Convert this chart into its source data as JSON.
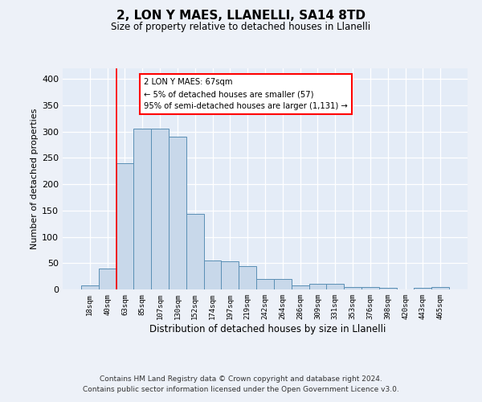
{
  "title_line1": "2, LON Y MAES, LLANELLI, SA14 8TD",
  "title_line2": "Size of property relative to detached houses in Llanelli",
  "xlabel": "Distribution of detached houses by size in Llanelli",
  "ylabel": "Number of detached properties",
  "categories": [
    "18sqm",
    "40sqm",
    "63sqm",
    "85sqm",
    "107sqm",
    "130sqm",
    "152sqm",
    "174sqm",
    "197sqm",
    "219sqm",
    "242sqm",
    "264sqm",
    "286sqm",
    "309sqm",
    "331sqm",
    "353sqm",
    "376sqm",
    "398sqm",
    "420sqm",
    "443sqm",
    "465sqm"
  ],
  "values": [
    7,
    39,
    240,
    305,
    305,
    290,
    143,
    55,
    54,
    45,
    20,
    20,
    7,
    10,
    10,
    4,
    4,
    3,
    0,
    3,
    4
  ],
  "bar_color": "#c8d8ea",
  "bar_edge_color": "#5a8fb5",
  "red_line_index": 2,
  "annotation_text": "2 LON Y MAES: 67sqm\n← 5% of detached houses are smaller (57)\n95% of semi-detached houses are larger (1,131) →",
  "annotation_box_color": "white",
  "annotation_box_edge_color": "red",
  "ylim": [
    0,
    420
  ],
  "yticks": [
    0,
    50,
    100,
    150,
    200,
    250,
    300,
    350,
    400
  ],
  "footer_line1": "Contains HM Land Registry data © Crown copyright and database right 2024.",
  "footer_line2": "Contains public sector information licensed under the Open Government Licence v3.0.",
  "bg_color": "#edf1f8",
  "plot_bg_color": "#e4ecf7"
}
